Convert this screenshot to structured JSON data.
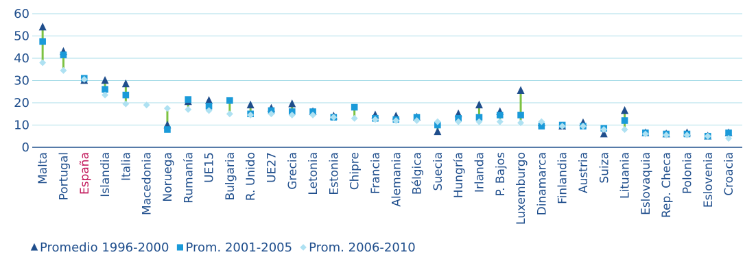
{
  "chart_data": {
    "type": "scatter",
    "title": "",
    "xlabel": "",
    "ylabel": "",
    "ylim": [
      0,
      60
    ],
    "yticks": [
      0,
      10,
      20,
      30,
      40,
      50,
      60
    ],
    "grid": true,
    "legend_position": "bottom-left",
    "categories": [
      "Malta",
      "Portugal",
      "España",
      "Islandia",
      "Italia",
      "Macedonia",
      "Noruega",
      "Rumanía",
      "UE15",
      "Bulgaria",
      "R. Unido",
      "UE27",
      "Grecia",
      "Letonia",
      "Estonia",
      "Chipre",
      "Francia",
      "Alemania",
      "Bélgica",
      "Suecia",
      "Hungría",
      "Irlanda",
      "P. Bajos",
      "Luxemburgo",
      "Dinamarca",
      "Finlandia",
      "Austria",
      "Suiza",
      "Lituania",
      "Eslovaquia",
      "Rep. Checa",
      "Polonia",
      "Eslovenia",
      "Croacia"
    ],
    "highlight_category": "España",
    "highlight_color": "#c2185b",
    "range_color": "#7dc242",
    "series": [
      {
        "name": "Promedio 1996-2000",
        "marker": "triangle",
        "color": "#1f4e8c",
        "values": [
          54,
          43,
          30,
          30,
          28.5,
          null,
          10,
          20.5,
          21,
          null,
          19,
          17.5,
          19.5,
          16,
          14,
          null,
          14.5,
          14,
          13.5,
          7,
          15,
          19,
          16,
          25.5,
          11,
          9.5,
          11,
          6,
          16.5,
          6.5,
          6,
          6.5,
          5,
          6.5
        ]
      },
      {
        "name": "Prom. 2001-2005",
        "marker": "square",
        "color": "#1a9ad9",
        "values": [
          47.5,
          41.5,
          31,
          26,
          23.5,
          null,
          8,
          21.5,
          18.5,
          21,
          15,
          16.5,
          16,
          16,
          13.5,
          18,
          13,
          12.5,
          13.5,
          10,
          13,
          13.5,
          14.5,
          14.5,
          9.5,
          10,
          9.5,
          8.5,
          12,
          6.5,
          6,
          6,
          5,
          6.5
        ]
      },
      {
        "name": "Prom. 2006-2010",
        "marker": "diamond",
        "color": "#aee1f2",
        "values": [
          38,
          34.5,
          30.5,
          23.5,
          19.5,
          19,
          17.5,
          17,
          16.5,
          15,
          14.5,
          15,
          14.5,
          14.5,
          13.5,
          13,
          12.5,
          12,
          12,
          11.5,
          11.5,
          11.5,
          11.5,
          11,
          11.5,
          9.5,
          9.5,
          8,
          8,
          6,
          5.5,
          5.5,
          5,
          4
        ]
      }
    ]
  }
}
